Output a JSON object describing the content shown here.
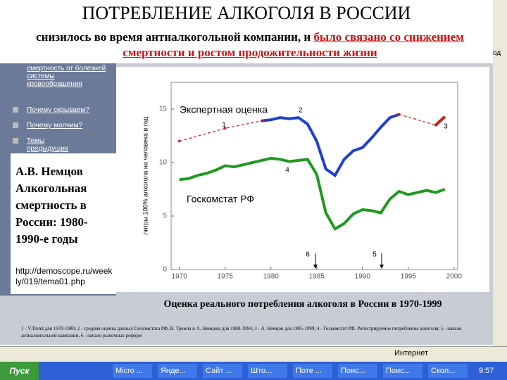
{
  "header": {
    "title": "ПОТРЕБЛЕНИЕ АЛКОГОЛЯ В РОССИИ",
    "subtitle_plain": "снизилось во время антиалкогольной компании, и ",
    "subtitle_red": "было связано со снижением смертности и  ростом продожительности жизни"
  },
  "sidebar": {
    "links": [
      "смертность от болезней системы кровообращения",
      "Почему скрываем?",
      "Почему молчим?",
      "Темы предыдущих номеров"
    ],
    "box_title": "А.В. Немцов Алкогольная смертность в России: 1980-1990-е годы",
    "box_url": "http://demoscope.ru/weekly/019/tema01.php"
  },
  "chart_data": {
    "type": "line",
    "ylabel": "литры 100% алкогола на человека в год",
    "caption": "Оценка реального потребления алкоголя в России в 1970-1999",
    "footnote": "1 - V.Treml для 1970-1980; 2 - средняя оценка данных Госкомстата РФ, В. Тремла и А. Немцова для 1980-1994; 3 - А. Немцов для 1995-1999; 4 - Госкомстат РФ. Регистрируемое потребление алкоголя; 5 - начало антиалкогольной кампании, 6 - начало рыночных реформ",
    "annotations": [
      "Экспертная оценка",
      "2",
      "1",
      "3",
      "4",
      "Госкомстат РФ",
      "6",
      "5"
    ],
    "xlim": [
      1969.1,
      2000.4
    ],
    "xticks": [
      1970,
      1975,
      1980,
      1985,
      1990,
      1995,
      2000
    ],
    "ylim": [
      0,
      17.5
    ],
    "yticks": [
      0,
      5,
      10,
      15
    ],
    "series": [
      {
        "name": "Экспертная оценка",
        "color": "#1f3fd0",
        "x": [
          1979,
          1980,
          1981,
          1982,
          1983,
          1984,
          1985,
          1986,
          1987,
          1988,
          1989,
          1990,
          1991,
          1992,
          1993,
          1994
        ],
        "values": [
          13.9,
          14.0,
          14.2,
          14.1,
          14.2,
          13.6,
          12.0,
          9.4,
          8.8,
          10.3,
          11.1,
          11.4,
          12.3,
          13.3,
          14.2,
          14.5
        ]
      },
      {
        "color": "#d01a1a",
        "dashed": true,
        "x": [
          1970,
          1975,
          1979
        ],
        "values": [
          12.0,
          13.2,
          13.9
        ]
      },
      {
        "color": "#d01a1a",
        "dashed": true,
        "x": [
          1994,
          1998
        ],
        "values": [
          14.5,
          13.5
        ]
      },
      {
        "color": "#d01a1a",
        "x": [
          1998,
          1999
        ],
        "values": [
          13.5,
          14.3
        ]
      },
      {
        "name": "Госкомстат РФ",
        "color": "#1e9a1e",
        "x": [
          1970,
          1971,
          1972,
          1973,
          1974,
          1975,
          1976,
          1977,
          1978,
          1979,
          1980,
          1981,
          1982,
          1983,
          1984,
          1985,
          1986,
          1987,
          1988,
          1989,
          1990,
          1991,
          1992,
          1993,
          1994,
          1995,
          1996,
          1997,
          1998,
          1999
        ],
        "values": [
          8.4,
          8.5,
          8.8,
          9.0,
          9.3,
          9.7,
          9.6,
          9.8,
          10.0,
          10.2,
          10.4,
          10.3,
          10.1,
          10.2,
          10.3,
          8.9,
          5.3,
          3.8,
          4.3,
          5.2,
          5.6,
          5.5,
          5.3,
          6.6,
          7.3,
          7.0,
          7.2,
          7.4,
          7.2,
          7.5
        ]
      }
    ]
  },
  "browser": {
    "status": "Интернет",
    "edge": "од"
  },
  "taskbar": {
    "start": "Пуск",
    "items": [
      "Micro ...",
      "Янде...",
      "Сайт ...",
      "Што...",
      "Поте ...",
      "Поис...",
      "Поис...",
      "Скол..."
    ],
    "clock": "9:57"
  }
}
